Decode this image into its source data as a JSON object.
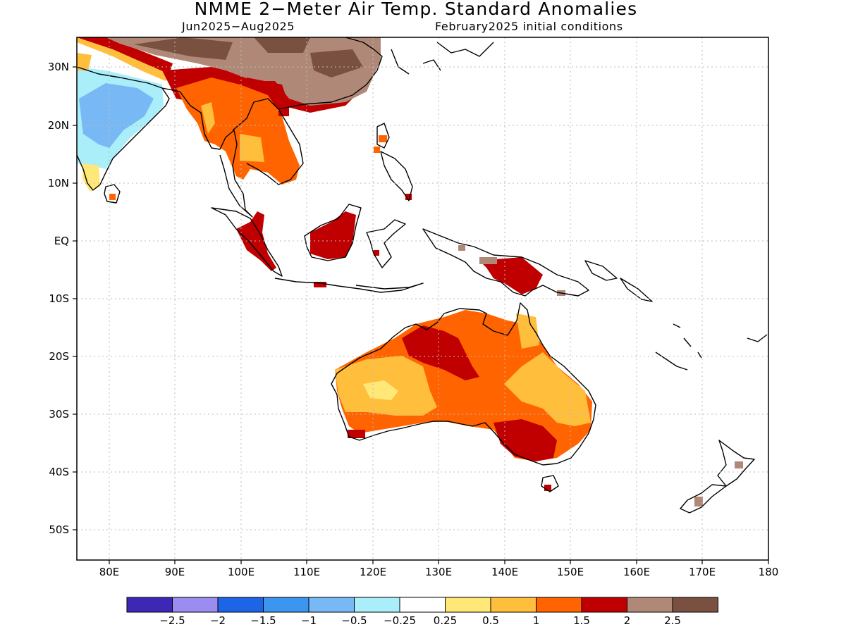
{
  "title": "NMME 2−Meter Air Temp. Standard Anomalies",
  "subtitle_left": "Jun2025−Aug2025",
  "subtitle_right": "February2025 initial conditions",
  "lat_labels": [
    "30N",
    "20N",
    "10N",
    "EQ",
    "10S",
    "20S",
    "30S",
    "40S",
    "50S"
  ],
  "lon_labels": [
    "80E",
    "90E",
    "100E",
    "110E",
    "120E",
    "130E",
    "140E",
    "150E",
    "160E",
    "170E",
    "180"
  ],
  "colorbar": {
    "colors": [
      "#3c28b4",
      "#9a8cf0",
      "#1e64e6",
      "#3c96f0",
      "#78b9f5",
      "#aaeefa",
      "#ffffff",
      "#ffe878",
      "#ffbe3c",
      "#ff6400",
      "#c00000",
      "#b08878",
      "#7a5040"
    ],
    "labels": [
      "−2.5",
      "−2",
      "−1.5",
      "−1",
      "−0.5",
      "−0.25",
      "0.25",
      "0.5",
      "1",
      "1.5",
      "2",
      "2.5"
    ]
  }
}
